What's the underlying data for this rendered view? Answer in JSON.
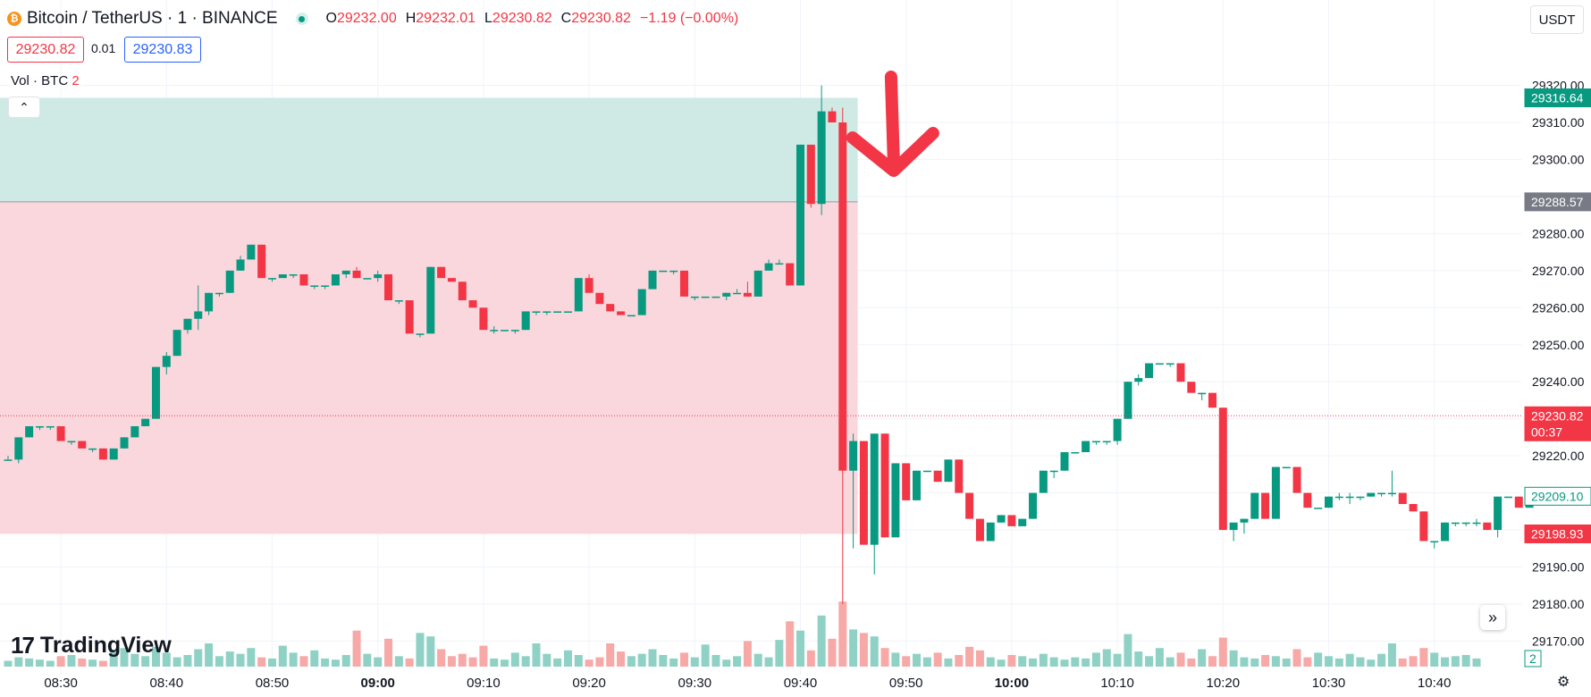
{
  "header": {
    "symbol": "Bitcoin / TetherUS · 1 · BINANCE",
    "open_label": "O",
    "open": "29232.00",
    "high_label": "H",
    "high": "29232.01",
    "low_label": "L",
    "low": "29230.82",
    "close_label": "C",
    "close": "29230.82",
    "change": "−1.19 (−0.00%)"
  },
  "trade": {
    "sell_price": "29230.82",
    "quantity": "0.01",
    "buy_price": "29230.83"
  },
  "volume_legend": {
    "label": "Vol · BTC",
    "value": "2"
  },
  "currency": "USDT",
  "logo_text": "TradingView",
  "icons": [
    "bitcoin-icon",
    "live-status-icon",
    "chevron-up-icon",
    "scroll-right-icon",
    "settings-icon",
    "arrow-down-annotation"
  ],
  "colors": {
    "up": "#089981",
    "down": "#f23645",
    "profit_zone": "#cce9e4",
    "loss_zone": "#fad5da",
    "grid": "#f0f3fa"
  },
  "chart_data": {
    "type": "candlestick",
    "xlabel": "",
    "ylabel": "",
    "ylim": [
      29166,
      29324
    ],
    "y_ticks": [
      "29170.00",
      "29180.00",
      "29190.00",
      "29200.00",
      "29210.00",
      "29220.00",
      "29230.00",
      "29240.00",
      "29250.00",
      "29260.00",
      "29270.00",
      "29280.00",
      "29290.00",
      "29300.00",
      "29310.00",
      "29320.00"
    ],
    "x_ticks": [
      {
        "label": "08:30",
        "pos": 5,
        "bold": false
      },
      {
        "label": "08:40",
        "pos": 15,
        "bold": false
      },
      {
        "label": "08:50",
        "pos": 25,
        "bold": false
      },
      {
        "label": "09:00",
        "pos": 35,
        "bold": true
      },
      {
        "label": "09:10",
        "pos": 45,
        "bold": false
      },
      {
        "label": "09:20",
        "pos": 55,
        "bold": false
      },
      {
        "label": "09:30",
        "pos": 65,
        "bold": false
      },
      {
        "label": "09:40",
        "pos": 75,
        "bold": false
      },
      {
        "label": "09:50",
        "pos": 85,
        "bold": false
      },
      {
        "label": "10:00",
        "pos": 95,
        "bold": true
      },
      {
        "label": "10:10",
        "pos": 105,
        "bold": false
      },
      {
        "label": "10:20",
        "pos": 115,
        "bold": false
      },
      {
        "label": "10:30",
        "pos": 125,
        "bold": false
      },
      {
        "label": "10:40",
        "pos": 135,
        "bold": false
      }
    ],
    "ohlc": [
      [
        29219,
        29220,
        29219,
        29219
      ],
      [
        29219,
        29225,
        29218,
        29225
      ],
      [
        29225,
        29228,
        29225,
        29228
      ],
      [
        29228,
        29228,
        29227,
        29228
      ],
      [
        29228,
        29228,
        29227,
        29228
      ],
      [
        29228,
        29228,
        29224,
        29224
      ],
      [
        29224,
        29224,
        29223,
        29224
      ],
      [
        29224,
        29224,
        29222,
        29222
      ],
      [
        29222,
        29222,
        29221,
        29222
      ],
      [
        29222,
        29222,
        29219,
        29219
      ],
      [
        29219,
        29222,
        29219,
        29222
      ],
      [
        29222,
        29225,
        29222,
        29225
      ],
      [
        29225,
        29228,
        29225,
        29228
      ],
      [
        29228,
        29230,
        29228,
        29230
      ],
      [
        29230,
        29244,
        29230,
        29244
      ],
      [
        29244,
        29248,
        29242,
        29247
      ],
      [
        29247,
        29254,
        29247,
        29254
      ],
      [
        29254,
        29257,
        29253,
        29257
      ],
      [
        29257,
        29266,
        29254,
        29259
      ],
      [
        29259,
        29264,
        29258,
        29264
      ],
      [
        29264,
        29264,
        29263,
        29264
      ],
      [
        29264,
        29270,
        29264,
        29270
      ],
      [
        29270,
        29274,
        29270,
        29273
      ],
      [
        29273,
        29277,
        29273,
        29277
      ],
      [
        29277,
        29277,
        29268,
        29268
      ],
      [
        29268,
        29268,
        29267,
        29268
      ],
      [
        29268,
        29269,
        29268,
        29269
      ],
      [
        29269,
        29269,
        29268,
        29269
      ],
      [
        29269,
        29269,
        29266,
        29266
      ],
      [
        29266,
        29266,
        29265,
        29266
      ],
      [
        29266,
        29266,
        29265,
        29266
      ],
      [
        29266,
        29269,
        29266,
        29269
      ],
      [
        29269,
        29270,
        29268,
        29270
      ],
      [
        29270,
        29271,
        29268,
        29268
      ],
      [
        29268,
        29268,
        29268,
        29268
      ],
      [
        29268,
        29270,
        29267,
        29269
      ],
      [
        29269,
        29269,
        29262,
        29262
      ],
      [
        29262,
        29262,
        29261,
        29262
      ],
      [
        29262,
        29262,
        29253,
        29253
      ],
      [
        29253,
        29253,
        29252,
        29253
      ],
      [
        29253,
        29271,
        29253,
        29271
      ],
      [
        29271,
        29271,
        29268,
        29268
      ],
      [
        29268,
        29268,
        29267,
        29267
      ],
      [
        29267,
        29267,
        29262,
        29262
      ],
      [
        29262,
        29262,
        29260,
        29260
      ],
      [
        29260,
        29260,
        29254,
        29254
      ],
      [
        29254,
        29255,
        29253,
        29254
      ],
      [
        29254,
        29254,
        29254,
        29254
      ],
      [
        29254,
        29254,
        29253,
        29254
      ],
      [
        29254,
        29259,
        29254,
        29259
      ],
      [
        29259,
        29259,
        29258,
        29259
      ],
      [
        29259,
        29259,
        29258,
        29259
      ],
      [
        29259,
        29259,
        29259,
        29259
      ],
      [
        29259,
        29259,
        29259,
        29259
      ],
      [
        29259,
        29268,
        29259,
        29268
      ],
      [
        29268,
        29269,
        29264,
        29264
      ],
      [
        29264,
        29264,
        29261,
        29261
      ],
      [
        29261,
        29261,
        29259,
        29259
      ],
      [
        29259,
        29259,
        29258,
        29258
      ],
      [
        29258,
        29258,
        29258,
        29258
      ],
      [
        29258,
        29265,
        29258,
        29265
      ],
      [
        29265,
        29270,
        29265,
        29270
      ],
      [
        29270,
        29270,
        29270,
        29270
      ],
      [
        29270,
        29270,
        29269,
        29270
      ],
      [
        29270,
        29270,
        29263,
        29263
      ],
      [
        29263,
        29263,
        29262,
        29263
      ],
      [
        29263,
        29263,
        29263,
        29263
      ],
      [
        29263,
        29263,
        29263,
        29263
      ],
      [
        29263,
        29264,
        29262,
        29264
      ],
      [
        29264,
        29265,
        29264,
        29264
      ],
      [
        29264,
        29267,
        29263,
        29263
      ],
      [
        29263,
        29270,
        29263,
        29270
      ],
      [
        29270,
        29273,
        29270,
        29272
      ],
      [
        29272,
        29273,
        29272,
        29272
      ],
      [
        29272,
        29272,
        29266,
        29266
      ],
      [
        29266,
        29304,
        29266,
        29304
      ],
      [
        29304,
        29304,
        29287,
        29288
      ],
      [
        29288,
        29320,
        29285,
        29313
      ],
      [
        29313,
        29314,
        29310,
        29310
      ],
      [
        29310,
        29314,
        29180,
        29216
      ],
      [
        29216,
        29226,
        29195,
        29224
      ],
      [
        29224,
        29224,
        29196,
        29196
      ],
      [
        29196,
        29226,
        29188,
        29226
      ],
      [
        29226,
        29226,
        29198,
        29198
      ],
      [
        29198,
        29218,
        29198,
        29218
      ],
      [
        29218,
        29218,
        29208,
        29208
      ],
      [
        29208,
        29216,
        29208,
        29216
      ],
      [
        29216,
        29216,
        29216,
        29216
      ],
      [
        29216,
        29216,
        29213,
        29213
      ],
      [
        29213,
        29219,
        29213,
        29219
      ],
      [
        29219,
        29219,
        29210,
        29210
      ],
      [
        29210,
        29210,
        29203,
        29203
      ],
      [
        29203,
        29203,
        29197,
        29197
      ],
      [
        29197,
        29202,
        29197,
        29202
      ],
      [
        29202,
        29204,
        29202,
        29204
      ],
      [
        29204,
        29204,
        29201,
        29201
      ],
      [
        29201,
        29203,
        29201,
        29203
      ],
      [
        29203,
        29210,
        29203,
        29210
      ],
      [
        29210,
        29216,
        29210,
        29216
      ],
      [
        29216,
        29216,
        29214,
        29216
      ],
      [
        29216,
        29221,
        29216,
        29221
      ],
      [
        29221,
        29221,
        29221,
        29221
      ],
      [
        29221,
        29224,
        29221,
        29224
      ],
      [
        29224,
        29224,
        29223,
        29224
      ],
      [
        29224,
        29224,
        29223,
        29224
      ],
      [
        29224,
        29230,
        29223,
        29230
      ],
      [
        29230,
        29240,
        29230,
        29240
      ],
      [
        29240,
        29242,
        29239,
        29241
      ],
      [
        29241,
        29245,
        29241,
        29245
      ],
      [
        29245,
        29245,
        29245,
        29245
      ],
      [
        29245,
        29245,
        29244,
        29245
      ],
      [
        29245,
        29245,
        29240,
        29240
      ],
      [
        29240,
        29240,
        29237,
        29237
      ],
      [
        29237,
        29237,
        29235,
        29237
      ],
      [
        29237,
        29237,
        29233,
        29233
      ],
      [
        29233,
        29233,
        29200,
        29200
      ],
      [
        29200,
        29202,
        29197,
        29202
      ],
      [
        29202,
        29203,
        29199,
        29203
      ],
      [
        29203,
        29210,
        29203,
        29210
      ],
      [
        29210,
        29210,
        29203,
        29203
      ],
      [
        29203,
        29217,
        29203,
        29217
      ],
      [
        29217,
        29217,
        29217,
        29217
      ],
      [
        29217,
        29217,
        29210,
        29210
      ],
      [
        29210,
        29210,
        29206,
        29206
      ],
      [
        29206,
        29206,
        29206,
        29206
      ],
      [
        29206,
        29209,
        29206,
        29209
      ],
      [
        29209,
        29210,
        29208,
        29209
      ],
      [
        29209,
        29210,
        29207,
        29209
      ],
      [
        29209,
        29209,
        29208,
        29209
      ],
      [
        29209,
        29210,
        29209,
        29210
      ],
      [
        29210,
        29210,
        29209,
        29210
      ],
      [
        29210,
        29216,
        29209,
        29210
      ],
      [
        29210,
        29210,
        29207,
        29207
      ],
      [
        29207,
        29207,
        29205,
        29205
      ],
      [
        29205,
        29205,
        29197,
        29197
      ],
      [
        29197,
        29197,
        29195,
        29197
      ],
      [
        29197,
        29202,
        29197,
        29202
      ],
      [
        29202,
        29202,
        29201,
        29202
      ],
      [
        29202,
        29202,
        29201,
        29202
      ],
      [
        29202,
        29203,
        29201,
        29202
      ],
      [
        29202,
        29202,
        29200,
        29200
      ],
      [
        29200,
        29209,
        29198,
        29209
      ],
      [
        29209,
        29209,
        29209,
        29209
      ],
      [
        29209,
        29209,
        29206,
        29206
      ],
      [
        29206,
        29210,
        29206,
        29209
      ]
    ],
    "volume": [
      0.5,
      0.8,
      0.7,
      0.6,
      0.5,
      0.9,
      1.0,
      0.7,
      0.6,
      0.5,
      1.4,
      1.6,
      1.1,
      0.9,
      1.7,
      1.2,
      0.8,
      1.0,
      1.5,
      2.0,
      0.9,
      1.3,
      1.1,
      1.6,
      0.8,
      0.7,
      1.8,
      1.2,
      0.9,
      1.4,
      0.7,
      0.6,
      1.0,
      3.1,
      1.1,
      0.8,
      2.4,
      0.9,
      0.7,
      2.9,
      2.6,
      1.5,
      0.9,
      1.1,
      0.8,
      1.8,
      0.7,
      0.6,
      1.2,
      0.9,
      2.0,
      1.1,
      0.7,
      1.4,
      1.0,
      0.6,
      0.8,
      2.0,
      1.3,
      0.9,
      1.1,
      1.5,
      1.0,
      0.7,
      1.2,
      0.8,
      1.9,
      1.0,
      0.6,
      0.9,
      2.2,
      1.1,
      0.8,
      2.3,
      3.9,
      3.1,
      1.4,
      4.4,
      2.4,
      5.6,
      3.2,
      2.9,
      2.6,
      1.6,
      1.2,
      0.9,
      1.1,
      0.8,
      1.2,
      0.7,
      1.0,
      1.7,
      1.4,
      0.8,
      0.6,
      1.0,
      0.9,
      0.7,
      1.1,
      0.8,
      0.6,
      0.8,
      0.7,
      1.2,
      1.5,
      1.1,
      2.8,
      1.3,
      0.9,
      1.6,
      0.8,
      1.2,
      0.7,
      1.5,
      0.9,
      2.5,
      1.4,
      0.8,
      0.7,
      1.0,
      0.9,
      0.7,
      1.5,
      0.8,
      1.2,
      0.9,
      0.7,
      1.1,
      0.8,
      0.6,
      1.1,
      2.0,
      0.7,
      0.9,
      1.6,
      1.2,
      0.8,
      0.9,
      1.0,
      0.7
    ],
    "position": {
      "entry": 29288.57,
      "target": 29316.64,
      "stop": 29198.93,
      "start_index": 0,
      "end_index": 80
    },
    "price_labels": [
      {
        "value": 29316.64,
        "text": "29316.64",
        "color": "#089981"
      },
      {
        "value": 29288.57,
        "text": "29288.57",
        "color": "#787b86"
      },
      {
        "value": 29230.82,
        "text": "29230.82",
        "sub": "00:37",
        "color": "#f23645"
      },
      {
        "value": 29209.1,
        "text": "29209.10",
        "color": "#089981",
        "outline": true
      },
      {
        "value": 29198.93,
        "text": "29198.93",
        "color": "#f23645"
      }
    ],
    "last_price": 29230.82,
    "volume_scale_label": "2"
  }
}
